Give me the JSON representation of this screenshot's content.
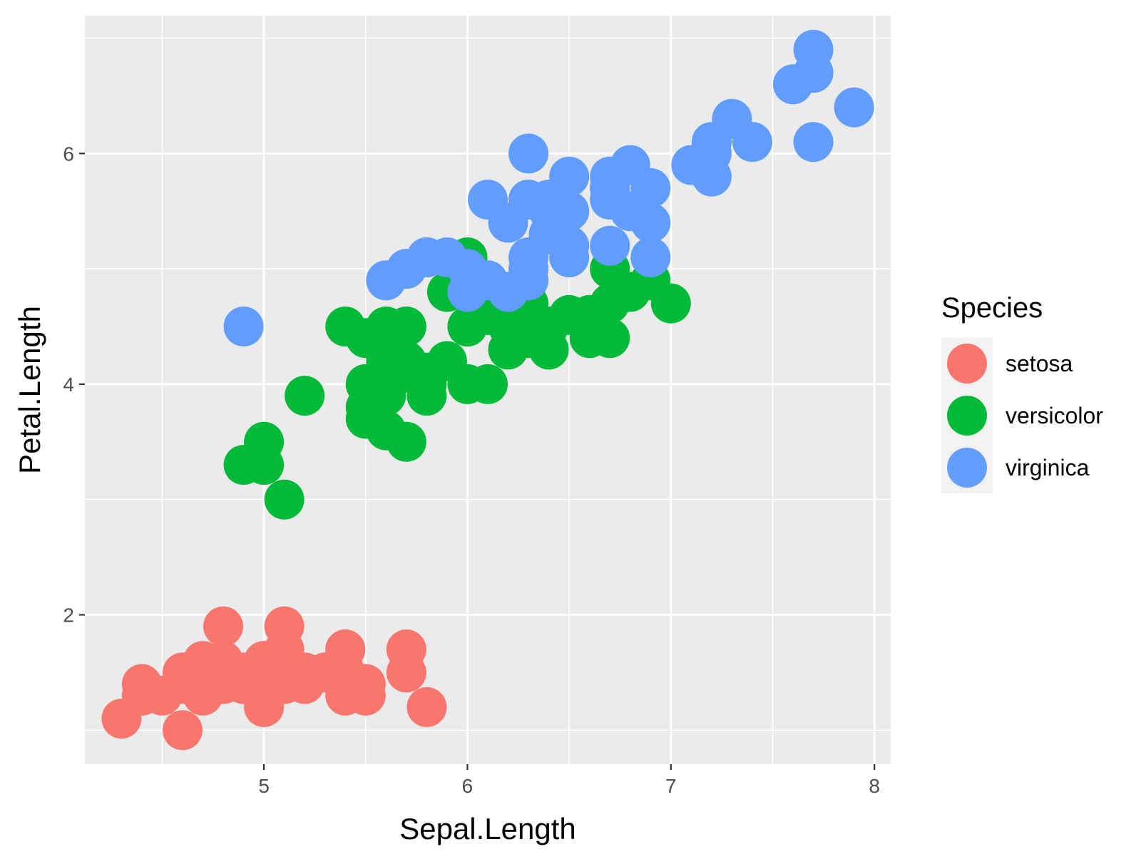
{
  "chart_data": {
    "type": "scatter",
    "title": "",
    "xlabel": "Sepal.Length",
    "ylabel": "Petal.Length",
    "xlim": [
      4.12,
      8.08
    ],
    "ylim": [
      0.705,
      7.195
    ],
    "x_ticks": [
      5,
      6,
      7,
      8
    ],
    "x_minor": [
      4.5,
      5.5,
      6.5,
      7.5
    ],
    "y_ticks": [
      2,
      4,
      6
    ],
    "y_minor": [
      1,
      3,
      5,
      7
    ],
    "grid": true,
    "legend": {
      "title": "Species",
      "position": "right"
    },
    "series": [
      {
        "name": "setosa",
        "color": "#F8766D",
        "points": [
          [
            5.1,
            1.4
          ],
          [
            4.9,
            1.4
          ],
          [
            4.7,
            1.3
          ],
          [
            4.6,
            1.5
          ],
          [
            5.0,
            1.4
          ],
          [
            5.4,
            1.7
          ],
          [
            4.6,
            1.4
          ],
          [
            5.0,
            1.5
          ],
          [
            4.4,
            1.4
          ],
          [
            4.9,
            1.5
          ],
          [
            5.4,
            1.5
          ],
          [
            4.8,
            1.6
          ],
          [
            4.8,
            1.4
          ],
          [
            4.3,
            1.1
          ],
          [
            5.8,
            1.2
          ],
          [
            5.7,
            1.5
          ],
          [
            5.4,
            1.3
          ],
          [
            5.1,
            1.4
          ],
          [
            5.7,
            1.7
          ],
          [
            5.1,
            1.5
          ],
          [
            5.4,
            1.7
          ],
          [
            5.1,
            1.5
          ],
          [
            4.6,
            1.0
          ],
          [
            5.1,
            1.7
          ],
          [
            4.8,
            1.9
          ],
          [
            5.0,
            1.6
          ],
          [
            5.0,
            1.6
          ],
          [
            5.2,
            1.5
          ],
          [
            5.2,
            1.4
          ],
          [
            4.7,
            1.6
          ],
          [
            4.8,
            1.6
          ],
          [
            5.4,
            1.5
          ],
          [
            5.2,
            1.5
          ],
          [
            5.5,
            1.4
          ],
          [
            4.9,
            1.5
          ],
          [
            5.0,
            1.2
          ],
          [
            5.5,
            1.3
          ],
          [
            4.9,
            1.4
          ],
          [
            4.4,
            1.3
          ],
          [
            5.1,
            1.5
          ],
          [
            5.0,
            1.3
          ],
          [
            4.5,
            1.3
          ],
          [
            4.4,
            1.3
          ],
          [
            5.0,
            1.6
          ],
          [
            5.1,
            1.9
          ],
          [
            4.8,
            1.4
          ],
          [
            5.1,
            1.6
          ],
          [
            4.6,
            1.4
          ],
          [
            5.3,
            1.5
          ],
          [
            5.0,
            1.4
          ]
        ]
      },
      {
        "name": "versicolor",
        "color": "#00BA38",
        "points": [
          [
            7.0,
            4.7
          ],
          [
            6.4,
            4.5
          ],
          [
            6.9,
            4.9
          ],
          [
            5.5,
            4.0
          ],
          [
            6.5,
            4.6
          ],
          [
            5.7,
            4.5
          ],
          [
            6.3,
            4.7
          ],
          [
            4.9,
            3.3
          ],
          [
            6.6,
            4.6
          ],
          [
            5.2,
            3.9
          ],
          [
            5.0,
            3.5
          ],
          [
            5.9,
            4.2
          ],
          [
            6.0,
            4.0
          ],
          [
            6.1,
            4.7
          ],
          [
            5.6,
            3.6
          ],
          [
            6.7,
            4.4
          ],
          [
            5.6,
            4.5
          ],
          [
            5.8,
            4.1
          ],
          [
            6.2,
            4.5
          ],
          [
            5.6,
            3.9
          ],
          [
            5.9,
            4.8
          ],
          [
            6.1,
            4.0
          ],
          [
            6.3,
            4.9
          ],
          [
            6.1,
            4.7
          ],
          [
            6.4,
            4.3
          ],
          [
            6.6,
            4.4
          ],
          [
            6.8,
            4.8
          ],
          [
            6.7,
            5.0
          ],
          [
            6.0,
            4.5
          ],
          [
            5.7,
            3.5
          ],
          [
            5.5,
            3.8
          ],
          [
            5.5,
            3.7
          ],
          [
            5.8,
            3.9
          ],
          [
            6.0,
            5.1
          ],
          [
            5.4,
            4.5
          ],
          [
            6.0,
            4.5
          ],
          [
            6.7,
            4.7
          ],
          [
            6.3,
            4.4
          ],
          [
            5.6,
            4.1
          ],
          [
            5.5,
            4.0
          ],
          [
            5.5,
            4.4
          ],
          [
            6.1,
            4.6
          ],
          [
            5.8,
            4.0
          ],
          [
            5.0,
            3.3
          ],
          [
            5.6,
            4.2
          ],
          [
            5.7,
            4.2
          ],
          [
            5.7,
            4.2
          ],
          [
            6.2,
            4.3
          ],
          [
            5.1,
            3.0
          ],
          [
            5.7,
            4.1
          ]
        ]
      },
      {
        "name": "virginica",
        "color": "#619CFF",
        "points": [
          [
            6.3,
            6.0
          ],
          [
            5.8,
            5.1
          ],
          [
            7.1,
            5.9
          ],
          [
            6.3,
            5.6
          ],
          [
            6.5,
            5.8
          ],
          [
            7.6,
            6.6
          ],
          [
            4.9,
            4.5
          ],
          [
            7.3,
            6.3
          ],
          [
            6.7,
            5.8
          ],
          [
            7.2,
            6.1
          ],
          [
            6.5,
            5.1
          ],
          [
            6.4,
            5.3
          ],
          [
            6.8,
            5.5
          ],
          [
            5.7,
            5.0
          ],
          [
            5.8,
            5.1
          ],
          [
            6.4,
            5.3
          ],
          [
            6.5,
            5.5
          ],
          [
            7.7,
            6.7
          ],
          [
            7.7,
            6.9
          ],
          [
            6.0,
            5.0
          ],
          [
            6.9,
            5.7
          ],
          [
            5.6,
            4.9
          ],
          [
            7.7,
            6.7
          ],
          [
            6.3,
            4.9
          ],
          [
            6.7,
            5.7
          ],
          [
            7.2,
            6.0
          ],
          [
            6.2,
            4.8
          ],
          [
            6.1,
            4.9
          ],
          [
            6.4,
            5.6
          ],
          [
            7.2,
            5.8
          ],
          [
            7.4,
            6.1
          ],
          [
            7.9,
            6.4
          ],
          [
            6.4,
            5.6
          ],
          [
            6.3,
            5.1
          ],
          [
            6.1,
            5.6
          ],
          [
            7.7,
            6.1
          ],
          [
            6.3,
            5.6
          ],
          [
            6.4,
            5.5
          ],
          [
            6.0,
            4.8
          ],
          [
            6.9,
            5.4
          ],
          [
            6.7,
            5.6
          ],
          [
            6.9,
            5.1
          ],
          [
            5.8,
            5.1
          ],
          [
            6.8,
            5.9
          ],
          [
            6.7,
            5.7
          ],
          [
            6.7,
            5.2
          ],
          [
            6.3,
            5.0
          ],
          [
            6.5,
            5.2
          ],
          [
            6.2,
            5.4
          ],
          [
            5.9,
            5.1
          ]
        ]
      }
    ]
  }
}
